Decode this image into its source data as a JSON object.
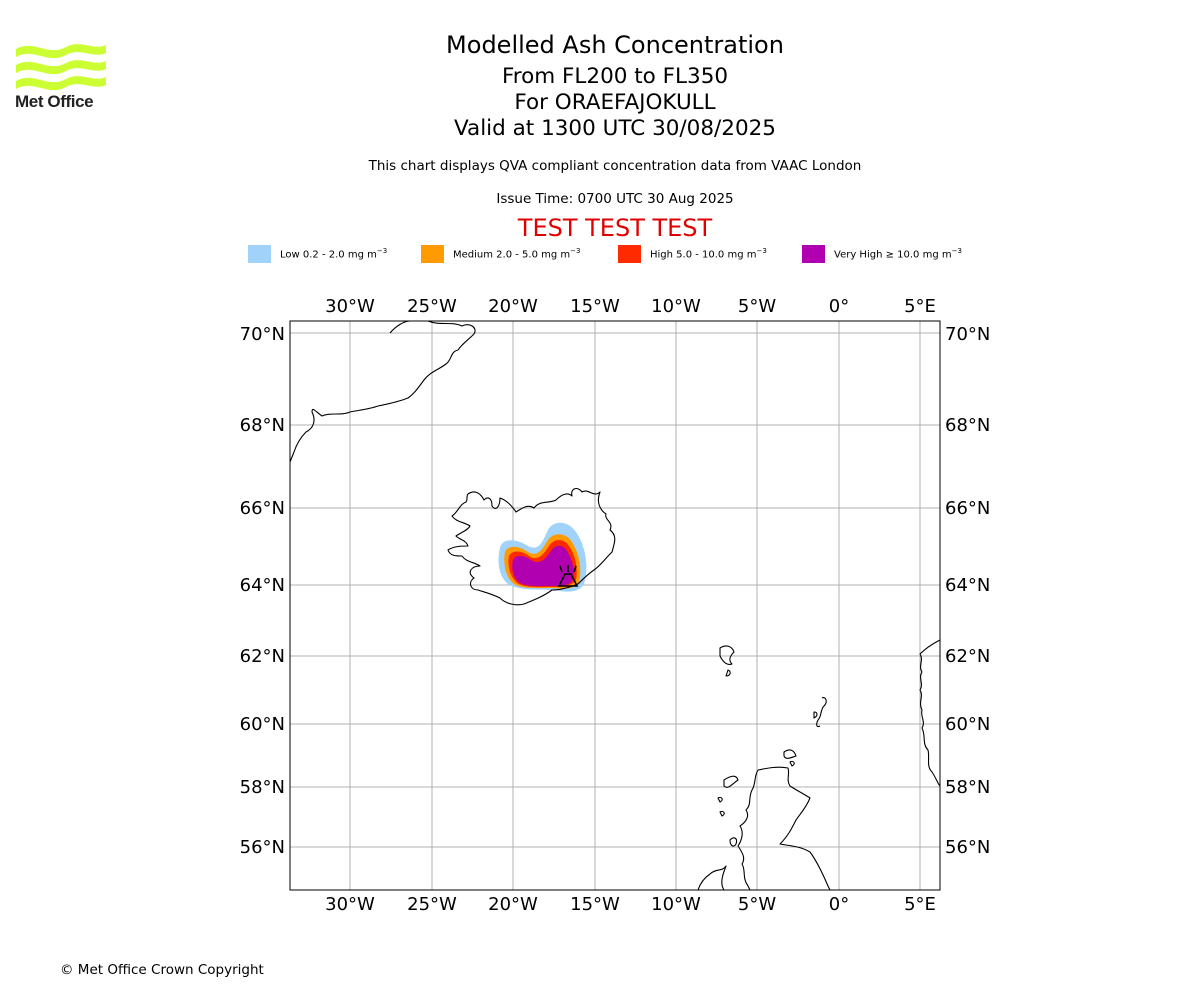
{
  "header": {
    "title": "Modelled Ash Concentration",
    "levels": "From FL200 to FL350",
    "volcano": "For ORAEFAJOKULL",
    "valid": "Valid at 1300 UTC 30/08/2025",
    "note": "This chart displays QVA compliant concentration data from VAAC London",
    "issue_time": "Issue Time: 0700 UTC 30 Aug 2025",
    "test_banner": "TEST TEST TEST"
  },
  "logo": {
    "text": "Met Office",
    "color": "#ccff33"
  },
  "legend": [
    {
      "prefix": "Low 0.2 - 2.0 mg m",
      "exp": "−3",
      "color": "#a0d2fa"
    },
    {
      "prefix": "Medium 2.0 - 5.0 mg m",
      "exp": "−3",
      "color": "#ff9a00"
    },
    {
      "prefix": "High 5.0 - 10.0 mg m",
      "exp": "−3",
      "color": "#ff2a00"
    },
    {
      "prefix": "Very High  ≥  10.0 mg m",
      "exp": "−3",
      "color": "#b000b0"
    }
  ],
  "map": {
    "lon_ticks": [
      "30°W",
      "25°W",
      "20°W",
      "15°W",
      "10°W",
      "5°W",
      "0°",
      "5°E"
    ],
    "lat_ticks": [
      "70°N",
      "68°N",
      "66°N",
      "64°N",
      "62°N",
      "60°N",
      "58°N",
      "56°N"
    ],
    "volcano_icon": "volcano-icon"
  },
  "footer": {
    "copyright": "© Met Office Crown Copyright"
  }
}
